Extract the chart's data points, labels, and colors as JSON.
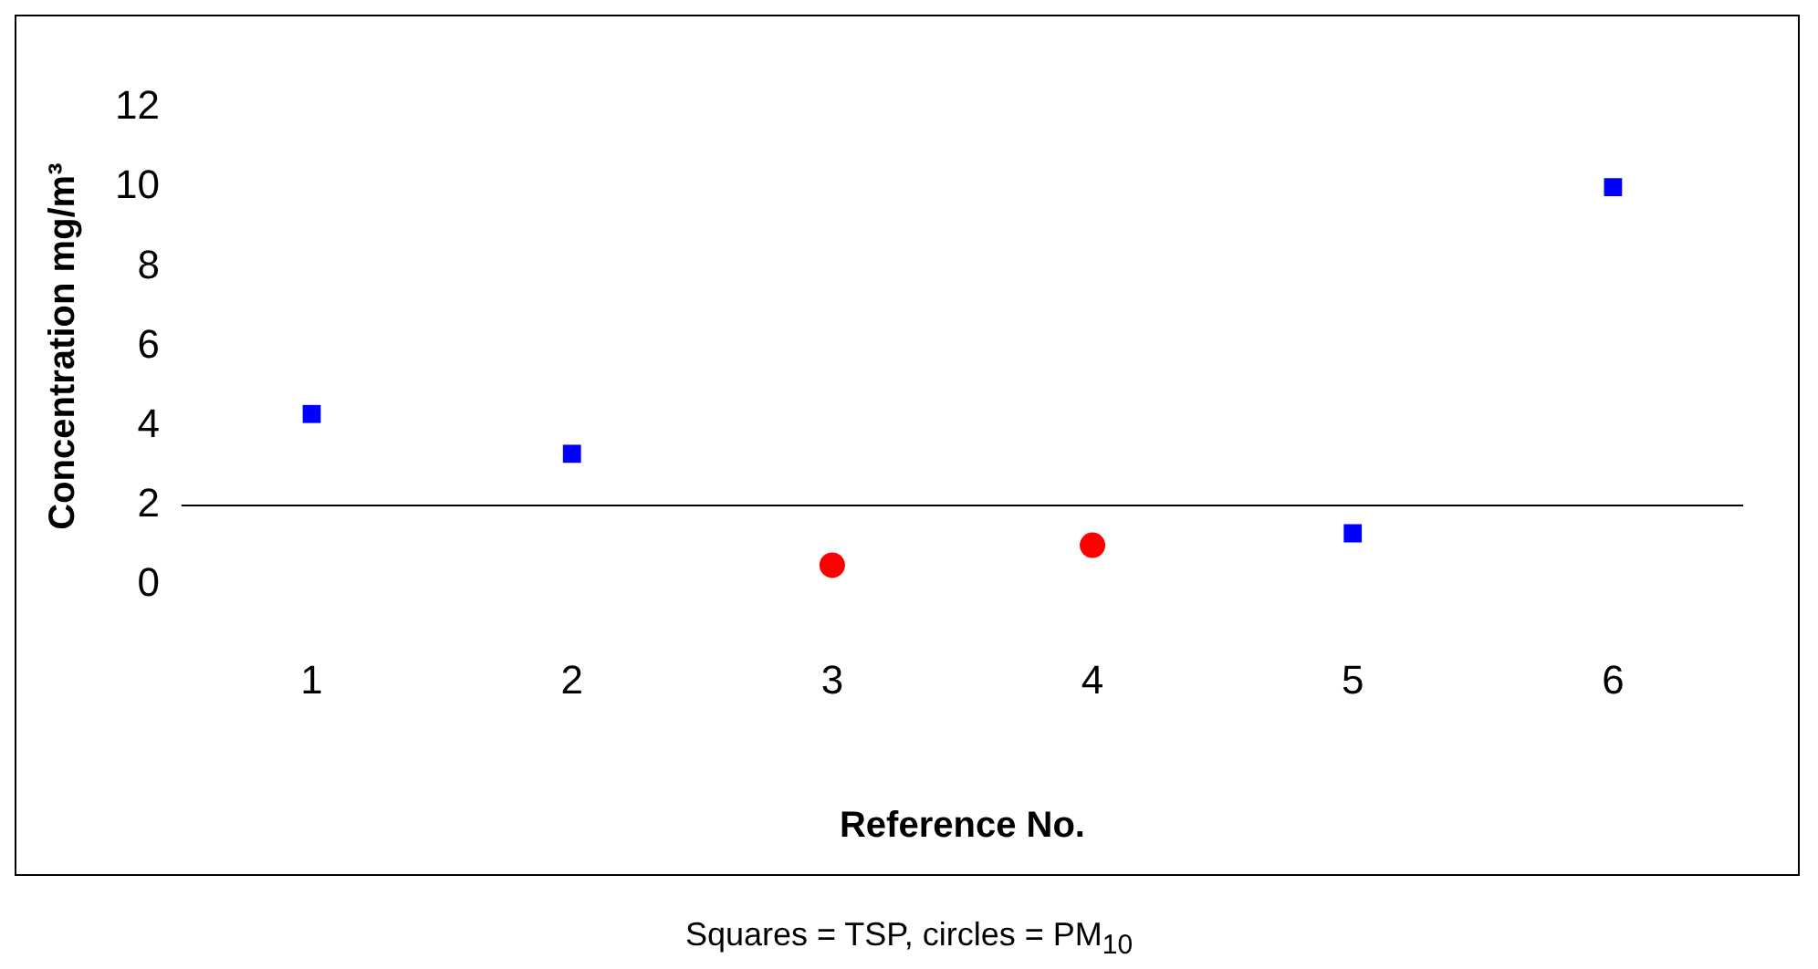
{
  "chart_data": {
    "type": "scatter",
    "xlabel": "Reference No.",
    "ylabel": "Concentration mg/m³",
    "categories": [
      "1",
      "2",
      "3",
      "4",
      "5",
      "6"
    ],
    "series": [
      {
        "color": "#0000ff",
        "marker": "square",
        "values": [
          4.3,
          3.3,
          null,
          null,
          1.3,
          10
        ]
      },
      {
        "color": "#ff0000",
        "marker": "circle",
        "values": [
          null,
          null,
          0.5,
          1.0,
          null,
          null
        ]
      }
    ],
    "ylim": [
      0,
      12
    ],
    "yticks": [
      0,
      2,
      4,
      6,
      8,
      10,
      12
    ],
    "grid": false,
    "legend": false,
    "ref_lines": [
      {
        "axis": "y",
        "value": 2,
        "color": "#000000",
        "line_style": "solid"
      }
    ],
    "annotations": [
      "Squares = TSP, circles = PM$_{10}$"
    ]
  }
}
